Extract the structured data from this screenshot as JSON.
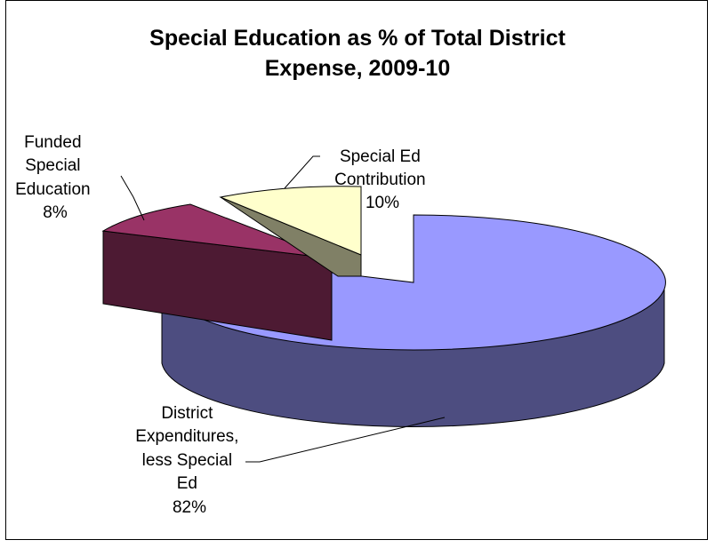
{
  "chart_data": {
    "type": "pie",
    "title_line1": "Special Education as % of Total District",
    "title_line2": "Expense, 2009-10",
    "slices": [
      {
        "label_lines": [
          "District",
          "Expenditures,",
          "less Special",
          "Ed"
        ],
        "percent_label": "82%",
        "value": 82,
        "color": "#9999ff",
        "side_color": "#4d4d80"
      },
      {
        "label_lines": [
          "Funded",
          "Special",
          "Education"
        ],
        "percent_label": "8%",
        "value": 8,
        "color": "#993366",
        "side_color": "#4d1a33"
      },
      {
        "label_lines": [
          "Special Ed",
          "Contribution"
        ],
        "percent_label": "10%",
        "value": 10,
        "color": "#ffffcc",
        "side_color": "#808066"
      }
    ]
  }
}
